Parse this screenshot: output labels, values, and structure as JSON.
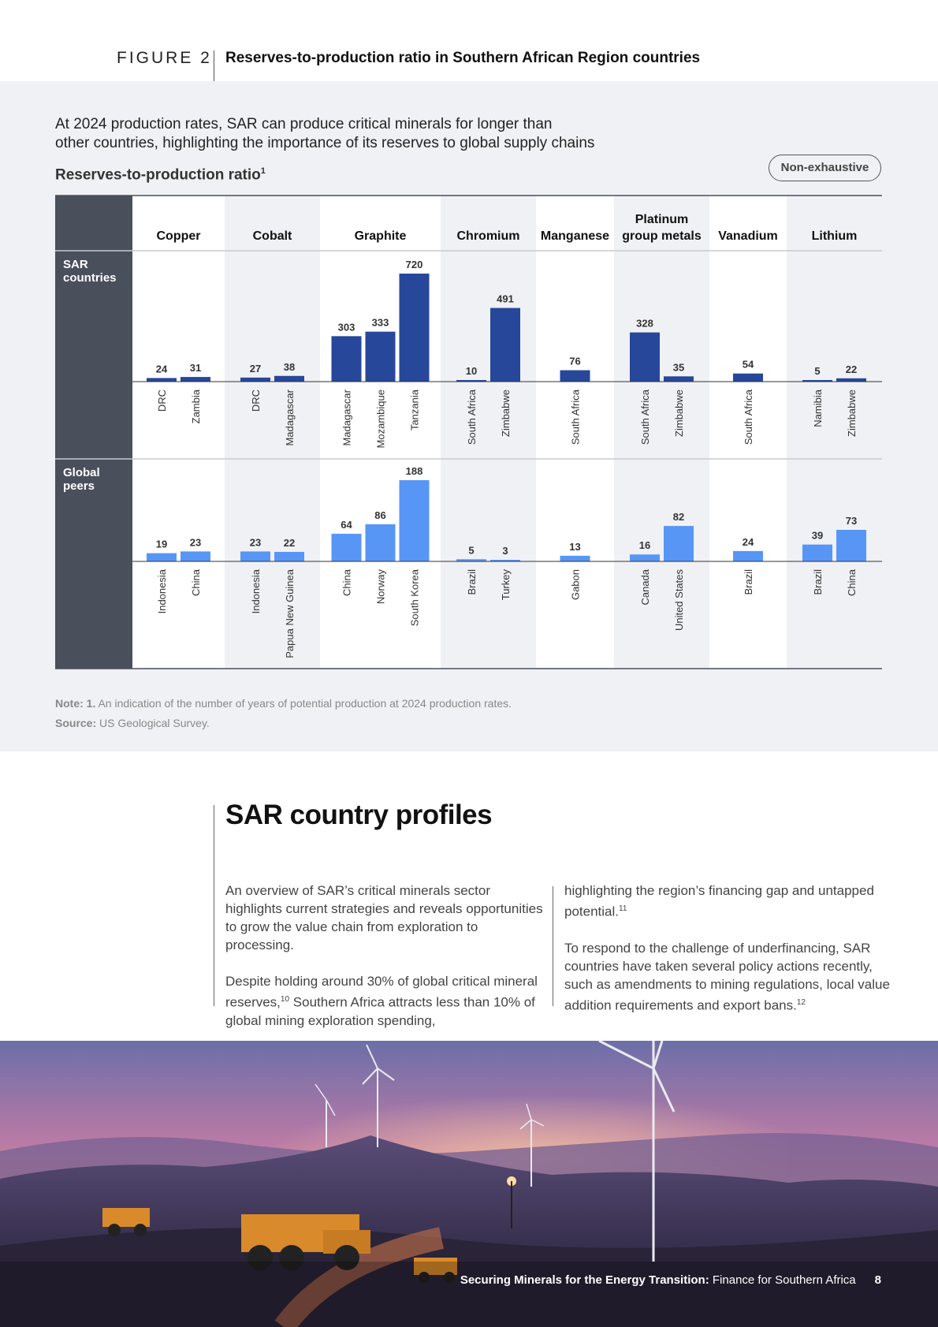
{
  "figure": {
    "label": "FIGURE 2",
    "title": "Reserves-to-production ratio in Southern African Region countries"
  },
  "intro": {
    "line1": "At 2024 production rates, SAR can produce critical minerals for longer than",
    "line2": "other countries, highlighting the importance of its reserves to global supply chains"
  },
  "badge": "Non-exhaustive",
  "chart_heading": {
    "text": "Reserves-to-production ratio",
    "sup": "1"
  },
  "chart_data": {
    "type": "bar",
    "minerals": [
      {
        "label": [
          "Copper"
        ],
        "sar": [
          {
            "country": "DRC",
            "value": 24
          },
          {
            "country": "Zambia",
            "value": 31
          }
        ],
        "peers": [
          {
            "country": "Indonesia",
            "value": 19
          },
          {
            "country": "China",
            "value": 23
          }
        ]
      },
      {
        "label": [
          "Cobalt"
        ],
        "sar": [
          {
            "country": "DRC",
            "value": 27
          },
          {
            "country": "Madagascar",
            "value": 38
          }
        ],
        "peers": [
          {
            "country": "Indonesia",
            "value": 23
          },
          {
            "country": "Papua New Guinea",
            "value": 22
          }
        ]
      },
      {
        "label": [
          "Graphite"
        ],
        "sar": [
          {
            "country": "Madagascar",
            "value": 303
          },
          {
            "country": "Mozambique",
            "value": 333
          },
          {
            "country": "Tanzania",
            "value": 720
          }
        ],
        "peers": [
          {
            "country": "China",
            "value": 64
          },
          {
            "country": "Norway",
            "value": 86
          },
          {
            "country": "South Korea",
            "value": 188
          }
        ]
      },
      {
        "label": [
          "Chromium"
        ],
        "sar": [
          {
            "country": "South Africa",
            "value": 10
          },
          {
            "country": "Zimbabwe",
            "value": 491
          }
        ],
        "peers": [
          {
            "country": "Brazil",
            "value": 5
          },
          {
            "country": "Turkey",
            "value": 3
          }
        ]
      },
      {
        "label": [
          "Manganese"
        ],
        "sar": [
          {
            "country": "South Africa",
            "value": 76
          }
        ],
        "peers": [
          {
            "country": "Gabon",
            "value": 13
          }
        ]
      },
      {
        "label": [
          "Platinum",
          "group metals"
        ],
        "sar": [
          {
            "country": "South Africa",
            "value": 328
          },
          {
            "country": "Zimbabwe",
            "value": 35
          }
        ],
        "peers": [
          {
            "country": "Canada",
            "value": 16
          },
          {
            "country": "United States",
            "value": 82
          }
        ]
      },
      {
        "label": [
          "Vanadium"
        ],
        "sar": [
          {
            "country": "South Africa",
            "value": 54
          }
        ],
        "peers": [
          {
            "country": "Brazil",
            "value": 24
          }
        ]
      },
      {
        "label": [
          "Lithium"
        ],
        "sar": [
          {
            "country": "Namibia",
            "value": 5
          },
          {
            "country": "Zimbabwe",
            "value": 22
          }
        ],
        "peers": [
          {
            "country": "Brazil",
            "value": 39
          },
          {
            "country": "China",
            "value": 73
          }
        ]
      }
    ],
    "groups": [
      {
        "label": [
          "SAR",
          "countries"
        ]
      },
      {
        "label": [
          "Global",
          "peers"
        ]
      }
    ],
    "colors": {
      "sar": "#26479a",
      "peers": "#5896f5",
      "group_panel": "#4a4f5c",
      "band": "#f0f1f4"
    }
  },
  "notes": {
    "note_label": "Note: 1.",
    "note_text": " An indication of the number of years of potential production at 2024 production rates.",
    "source_label": "Source:",
    "source_text": " US Geological Survey."
  },
  "section": {
    "title": "SAR country profiles",
    "left_p1": "An overview of SAR’s critical minerals sector highlights current strategies and reveals opportunities to grow the value chain from exploration to processing.",
    "left_p2a": "Despite holding around 30% of global critical mineral reserves,",
    "left_p2_ref": "10",
    "left_p2b": " Southern Africa attracts less than 10% of global mining exploration spending,",
    "right_p1a": "highlighting the region’s financing gap and untapped potential.",
    "right_p1_ref": "11",
    "right_p2a": "To respond to the challenge of underfinancing, SAR countries have taken several policy actions recently, such as amendments to mining regulations, local value addition requirements and export bans.",
    "right_p2_ref": "12"
  },
  "footer": {
    "report_bold": "Securing Minerals for the Energy Transition:",
    "report_rest": " Finance for Southern Africa",
    "page": "8"
  }
}
